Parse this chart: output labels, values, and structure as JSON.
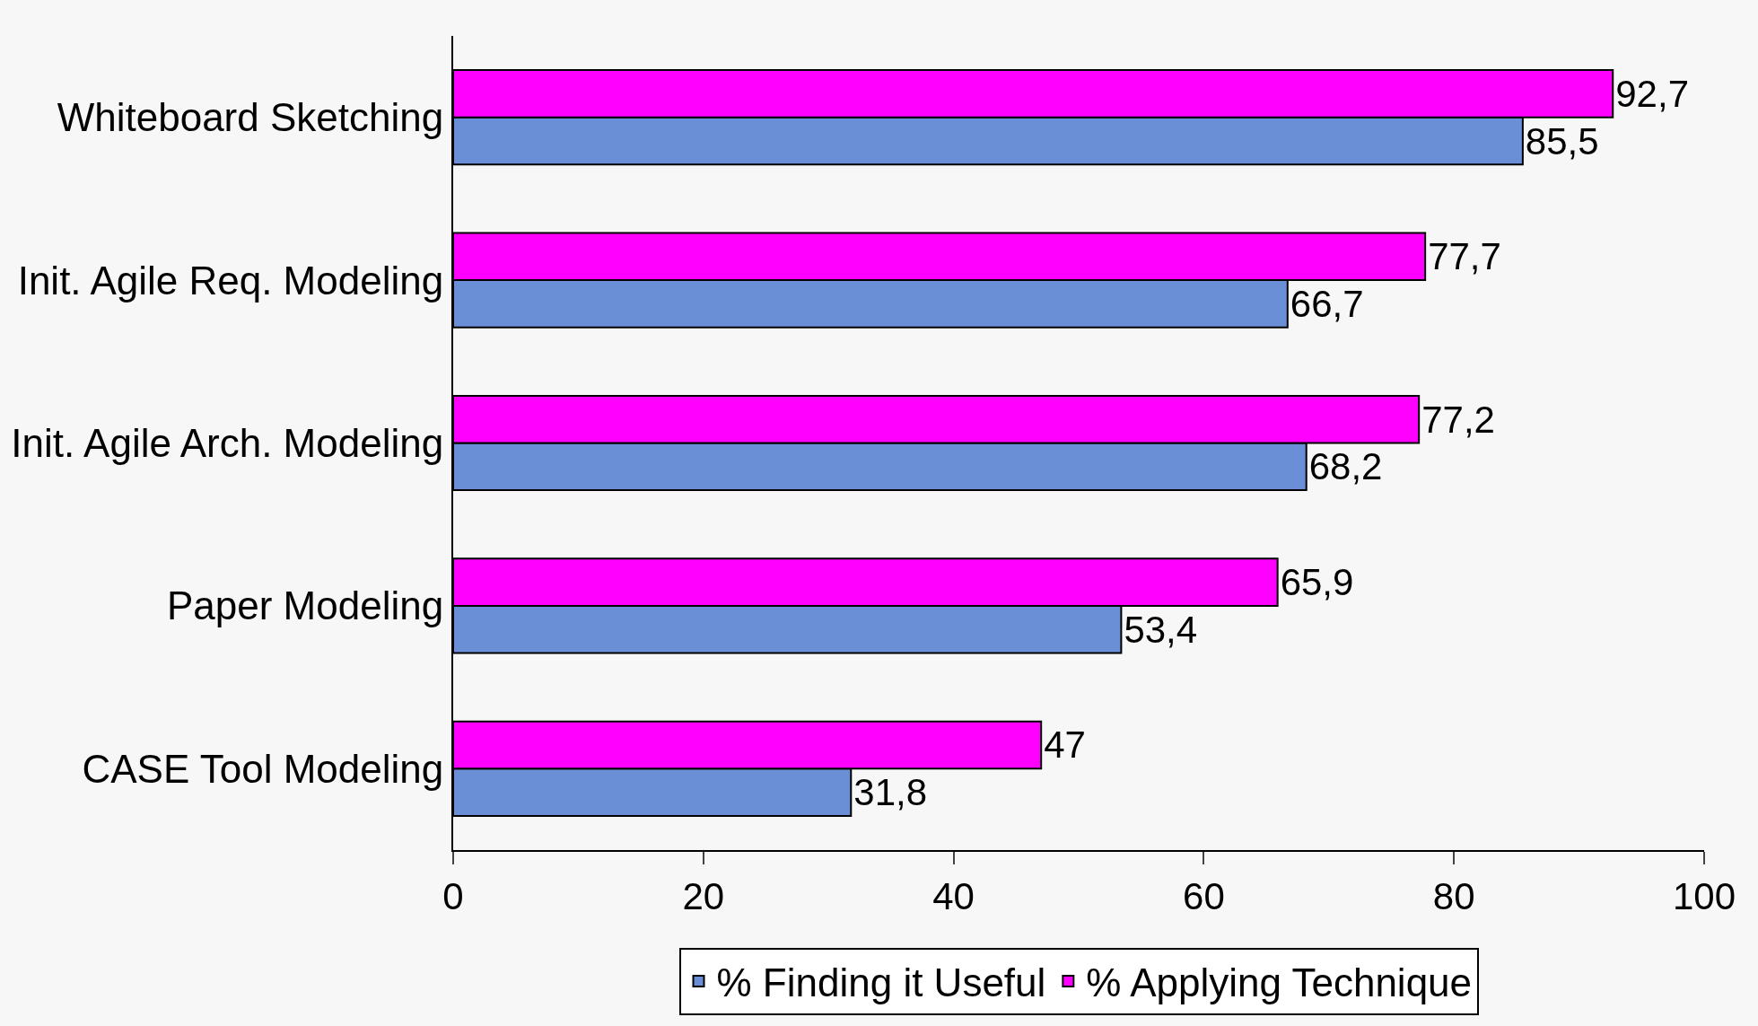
{
  "chart_data": {
    "type": "bar",
    "orientation": "horizontal",
    "categories": [
      "Whiteboard Sketching",
      "Init. Agile Req. Modeling",
      "Init. Agile Arch. Modeling",
      "Paper Modeling",
      "CASE Tool Modeling"
    ],
    "series": [
      {
        "name": "% Finding it Useful",
        "color": "#6b8fd6",
        "values": [
          85.5,
          66.7,
          68.2,
          53.4,
          31.8
        ],
        "value_labels": [
          "85,5",
          "66,7",
          "68,2",
          "53,4",
          "31,8"
        ]
      },
      {
        "name": "% Applying Technique",
        "color": "#ff00ff",
        "values": [
          92.7,
          77.7,
          77.2,
          65.9,
          47
        ],
        "value_labels": [
          "92,7",
          "77,7",
          "77,2",
          "65,9",
          "47"
        ]
      }
    ],
    "xlim": [
      0,
      100
    ],
    "xticks": [
      0,
      20,
      40,
      60,
      80,
      100
    ],
    "grid": false,
    "legend": "bottom"
  }
}
